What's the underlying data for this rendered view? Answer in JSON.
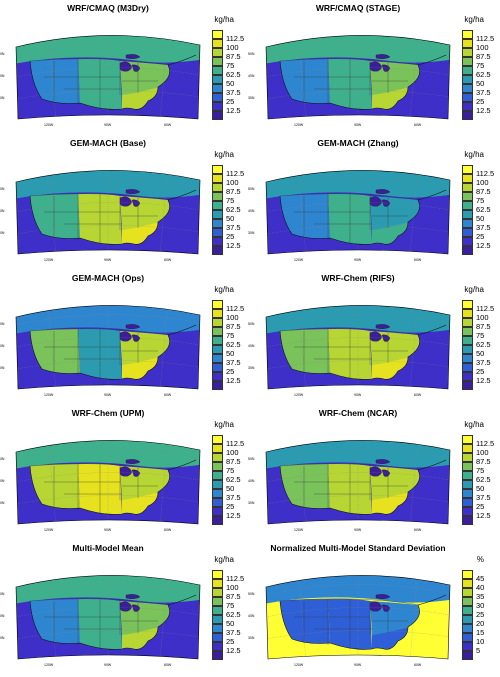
{
  "panels": [
    {
      "title": "WRF/CMAQ (M3Dry)",
      "unit": "kg/ha",
      "scale": "dep",
      "pattern": "med"
    },
    {
      "title": "WRF/CMAQ (STAGE)",
      "unit": "kg/ha",
      "scale": "dep",
      "pattern": "med"
    },
    {
      "title": "GEM-MACH (Base)",
      "unit": "kg/ha",
      "scale": "dep",
      "pattern": "gem"
    },
    {
      "title": "GEM-MACH (Zhang)",
      "unit": "kg/ha",
      "scale": "dep",
      "pattern": "gemz"
    },
    {
      "title": "GEM-MACH (Ops)",
      "unit": "kg/ha",
      "scale": "dep",
      "pattern": "ops"
    },
    {
      "title": "WRF-Chem (RIFS)",
      "unit": "kg/ha",
      "scale": "dep",
      "pattern": "wrf"
    },
    {
      "title": "WRF-Chem (UPM)",
      "unit": "kg/ha",
      "scale": "dep",
      "pattern": "wrfhi"
    },
    {
      "title": "WRF-Chem (NCAR)",
      "unit": "kg/ha",
      "scale": "dep",
      "pattern": "wrf"
    },
    {
      "title": "Multi-Model Mean",
      "unit": "kg/ha",
      "scale": "dep",
      "pattern": "med"
    },
    {
      "title": "Normalized Multi-Model Standard Deviation",
      "unit": "%",
      "scale": "pct",
      "pattern": "sd"
    }
  ],
  "colorbars": {
    "dep": {
      "labels": [
        "112.5",
        "100",
        "87.5",
        "75",
        "62.5",
        "50",
        "37.5",
        "25",
        "12.5"
      ]
    },
    "pct": {
      "labels": [
        "45",
        "40",
        "35",
        "30",
        "25",
        "20",
        "15",
        "10",
        "5"
      ]
    }
  },
  "colors": [
    "#ffff33",
    "#e6e21f",
    "#b8d633",
    "#7ac25a",
    "#3fb08c",
    "#2a9bb0",
    "#2f86d0",
    "#2f5fd6",
    "#3d2fc8",
    "#3a1e9c"
  ],
  "axes": {
    "lat_labels": [
      "50N",
      "40N",
      "30N"
    ],
    "lon_labels": [
      "120W",
      "90W",
      "60W"
    ]
  }
}
